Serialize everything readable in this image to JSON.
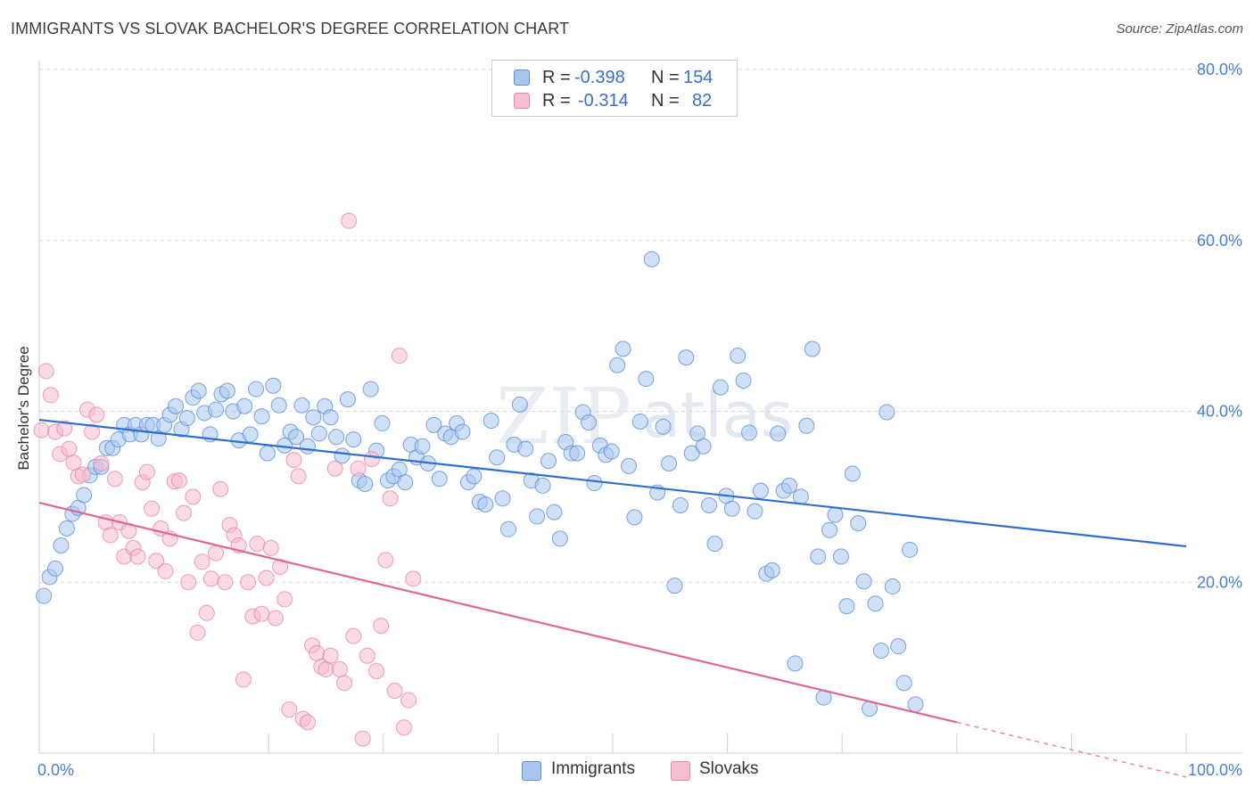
{
  "title": "IMMIGRANTS VS SLOVAK BACHELOR'S DEGREE CORRELATION CHART",
  "source": "Source: ZipAtlas.com",
  "watermark": {
    "zip": "ZIP",
    "atlas": "atlas"
  },
  "colors": {
    "blue_fill": "#a9c6ef",
    "blue_stroke": "#5b8fd8",
    "blue_line": "#2f6fd0",
    "pink_fill": "#f6bcd0",
    "pink_stroke": "#e888a8",
    "pink_line": "#e06690",
    "tick_text": "#4a7fd4",
    "grid": "#d9d9d9"
  },
  "legend": {
    "rows": [
      {
        "r_label": "R =",
        "r_value": "-0.398",
        "n_label": "N =",
        "n_value": "154"
      },
      {
        "r_label": "R =",
        "r_value": "-0.314",
        "n_label": "N =",
        "n_value": "82"
      }
    ]
  },
  "bottom_legend": {
    "series1": "Immigrants",
    "series2": "Slovaks"
  },
  "chart_data": {
    "type": "scatter",
    "title": "IMMIGRANTS VS SLOVAK BACHELOR'S DEGREE CORRELATION CHART",
    "xlabel": "",
    "ylabel": "Bachelor's Degree",
    "xlim": [
      0,
      100
    ],
    "ylim": [
      0,
      80
    ],
    "x_tick_labels": [
      "0.0%",
      "100.0%"
    ],
    "y_ticks": [
      20,
      40,
      60,
      80
    ],
    "y_tick_labels": [
      "20.0%",
      "40.0%",
      "60.0%",
      "80.0%"
    ],
    "legend_position": "top-center",
    "series": [
      {
        "name": "Immigrants",
        "R": -0.398,
        "N": 154,
        "trend": {
          "x": [
            0,
            100
          ],
          "y": [
            39.0,
            24.2
          ]
        },
        "points": [
          [
            0.4,
            18.4
          ],
          [
            0.9,
            20.6
          ],
          [
            1.4,
            21.6
          ],
          [
            1.9,
            24.3
          ],
          [
            2.4,
            26.3
          ],
          [
            2.9,
            28.0
          ],
          [
            3.4,
            28.7
          ],
          [
            3.9,
            30.2
          ],
          [
            4.4,
            32.5
          ],
          [
            4.9,
            33.5
          ],
          [
            5.4,
            33.5
          ],
          [
            5.9,
            35.7
          ],
          [
            6.4,
            35.7
          ],
          [
            6.9,
            36.7
          ],
          [
            7.4,
            38.4
          ],
          [
            7.9,
            37.3
          ],
          [
            8.4,
            38.4
          ],
          [
            8.9,
            37.3
          ],
          [
            9.4,
            38.4
          ],
          [
            9.9,
            38.4
          ],
          [
            10.4,
            36.8
          ],
          [
            10.9,
            38.4
          ],
          [
            11.4,
            39.6
          ],
          [
            11.9,
            40.6
          ],
          [
            12.4,
            37.9
          ],
          [
            12.9,
            39.2
          ],
          [
            13.4,
            41.6
          ],
          [
            13.9,
            42.4
          ],
          [
            14.4,
            39.8
          ],
          [
            14.9,
            37.3
          ],
          [
            15.4,
            40.2
          ],
          [
            15.9,
            42.0
          ],
          [
            16.4,
            42.4
          ],
          [
            16.9,
            40.0
          ],
          [
            17.4,
            36.6
          ],
          [
            17.9,
            40.6
          ],
          [
            18.4,
            37.3
          ],
          [
            18.9,
            42.6
          ],
          [
            19.4,
            39.4
          ],
          [
            19.9,
            35.1
          ],
          [
            20.4,
            43.0
          ],
          [
            20.9,
            40.7
          ],
          [
            21.4,
            36.0
          ],
          [
            21.9,
            37.6
          ],
          [
            22.4,
            37.0
          ],
          [
            22.9,
            40.7
          ],
          [
            23.4,
            35.9
          ],
          [
            23.9,
            39.3
          ],
          [
            24.4,
            37.4
          ],
          [
            24.9,
            40.6
          ],
          [
            25.4,
            39.3
          ],
          [
            25.9,
            37.0
          ],
          [
            26.4,
            34.8
          ],
          [
            26.9,
            41.4
          ],
          [
            27.4,
            36.7
          ],
          [
            27.9,
            31.9
          ],
          [
            28.4,
            31.5
          ],
          [
            28.9,
            42.6
          ],
          [
            29.4,
            35.4
          ],
          [
            29.9,
            38.6
          ],
          [
            30.4,
            31.9
          ],
          [
            30.9,
            32.4
          ],
          [
            31.4,
            33.2
          ],
          [
            31.9,
            31.7
          ],
          [
            32.4,
            36.1
          ],
          [
            32.9,
            34.6
          ],
          [
            33.4,
            35.9
          ],
          [
            33.9,
            33.9
          ],
          [
            34.4,
            38.4
          ],
          [
            34.9,
            32.1
          ],
          [
            35.4,
            37.4
          ],
          [
            35.9,
            37.0
          ],
          [
            36.4,
            38.6
          ],
          [
            36.9,
            37.6
          ],
          [
            37.4,
            31.7
          ],
          [
            37.9,
            32.4
          ],
          [
            38.4,
            29.4
          ],
          [
            38.9,
            29.1
          ],
          [
            39.4,
            38.9
          ],
          [
            39.9,
            34.6
          ],
          [
            40.4,
            29.8
          ],
          [
            40.9,
            26.2
          ],
          [
            41.4,
            36.1
          ],
          [
            41.9,
            40.8
          ],
          [
            42.4,
            35.6
          ],
          [
            42.9,
            31.9
          ],
          [
            43.4,
            27.7
          ],
          [
            43.9,
            31.3
          ],
          [
            44.4,
            34.2
          ],
          [
            44.9,
            28.2
          ],
          [
            45.4,
            25.1
          ],
          [
            45.9,
            36.4
          ],
          [
            46.4,
            35.1
          ],
          [
            46.9,
            35.1
          ],
          [
            47.4,
            39.9
          ],
          [
            47.9,
            38.7
          ],
          [
            48.4,
            31.6
          ],
          [
            48.9,
            36.0
          ],
          [
            49.4,
            34.9
          ],
          [
            49.9,
            35.3
          ],
          [
            50.4,
            45.4
          ],
          [
            50.9,
            47.3
          ],
          [
            51.4,
            33.6
          ],
          [
            51.9,
            27.6
          ],
          [
            52.4,
            38.8
          ],
          [
            52.9,
            43.8
          ],
          [
            53.4,
            57.8
          ],
          [
            53.9,
            30.5
          ],
          [
            54.4,
            38.2
          ],
          [
            54.9,
            33.9
          ],
          [
            55.4,
            19.6
          ],
          [
            55.9,
            29.0
          ],
          [
            56.4,
            46.3
          ],
          [
            56.9,
            35.1
          ],
          [
            57.4,
            37.4
          ],
          [
            57.9,
            35.9
          ],
          [
            58.4,
            29.0
          ],
          [
            58.9,
            24.5
          ],
          [
            59.4,
            42.8
          ],
          [
            59.9,
            30.1
          ],
          [
            60.4,
            28.6
          ],
          [
            60.9,
            46.5
          ],
          [
            61.4,
            43.6
          ],
          [
            61.9,
            37.5
          ],
          [
            62.4,
            28.3
          ],
          [
            62.9,
            30.7
          ],
          [
            63.4,
            21.0
          ],
          [
            63.9,
            21.4
          ],
          [
            64.4,
            37.4
          ],
          [
            64.9,
            30.7
          ],
          [
            65.4,
            31.3
          ],
          [
            65.9,
            10.5
          ],
          [
            66.4,
            30.0
          ],
          [
            66.9,
            38.3
          ],
          [
            67.4,
            47.3
          ],
          [
            67.9,
            23.0
          ],
          [
            68.4,
            6.5
          ],
          [
            68.9,
            26.1
          ],
          [
            69.4,
            27.9
          ],
          [
            69.9,
            23.0
          ],
          [
            70.4,
            17.2
          ],
          [
            70.9,
            32.7
          ],
          [
            71.4,
            26.9
          ],
          [
            71.9,
            20.1
          ],
          [
            72.4,
            5.2
          ],
          [
            72.9,
            17.5
          ],
          [
            73.4,
            12.0
          ],
          [
            73.9,
            39.9
          ],
          [
            74.4,
            19.5
          ],
          [
            74.9,
            12.5
          ],
          [
            75.4,
            8.2
          ],
          [
            75.9,
            23.8
          ],
          [
            76.4,
            5.7
          ]
        ]
      },
      {
        "name": "Slovaks",
        "R": -0.314,
        "N": 82,
        "trend": {
          "x": [
            0,
            80
          ],
          "y": [
            29.3,
            3.6
          ]
        },
        "trend_dashed": {
          "x": [
            80,
            100
          ],
          "y": [
            3.6,
            -2.8
          ]
        },
        "points": [
          [
            0.2,
            37.8
          ],
          [
            0.6,
            44.7
          ],
          [
            1.0,
            41.9
          ],
          [
            1.4,
            37.6
          ],
          [
            1.8,
            35.0
          ],
          [
            2.2,
            38.0
          ],
          [
            2.6,
            35.6
          ],
          [
            3.0,
            34.0
          ],
          [
            3.4,
            32.4
          ],
          [
            3.8,
            32.6
          ],
          [
            4.2,
            40.2
          ],
          [
            4.6,
            37.6
          ],
          [
            5.0,
            39.6
          ],
          [
            5.4,
            33.9
          ],
          [
            5.8,
            27.0
          ],
          [
            6.2,
            25.5
          ],
          [
            6.6,
            32.1
          ],
          [
            7.0,
            27.0
          ],
          [
            7.4,
            23.0
          ],
          [
            7.8,
            26.0
          ],
          [
            8.2,
            24.0
          ],
          [
            8.6,
            23.0
          ],
          [
            9.0,
            31.7
          ],
          [
            9.4,
            32.9
          ],
          [
            9.8,
            28.6
          ],
          [
            10.2,
            22.5
          ],
          [
            10.6,
            26.3
          ],
          [
            11.0,
            21.3
          ],
          [
            11.4,
            25.1
          ],
          [
            11.8,
            31.8
          ],
          [
            12.2,
            31.9
          ],
          [
            12.6,
            28.1
          ],
          [
            13.0,
            20.0
          ],
          [
            13.4,
            30.0
          ],
          [
            13.8,
            14.1
          ],
          [
            14.2,
            22.4
          ],
          [
            14.6,
            16.4
          ],
          [
            15.0,
            20.4
          ],
          [
            15.4,
            23.4
          ],
          [
            15.8,
            30.9
          ],
          [
            16.2,
            20.0
          ],
          [
            16.6,
            26.7
          ],
          [
            17.0,
            25.5
          ],
          [
            17.4,
            24.3
          ],
          [
            17.8,
            8.6
          ],
          [
            18.2,
            20.0
          ],
          [
            18.6,
            16.0
          ],
          [
            19.0,
            24.5
          ],
          [
            19.4,
            16.3
          ],
          [
            19.8,
            20.5
          ],
          [
            20.2,
            24.0
          ],
          [
            20.6,
            15.8
          ],
          [
            21.0,
            21.8
          ],
          [
            21.4,
            18.0
          ],
          [
            21.8,
            5.1
          ],
          [
            22.2,
            34.3
          ],
          [
            22.6,
            32.4
          ],
          [
            23.0,
            4.0
          ],
          [
            23.4,
            3.6
          ],
          [
            23.8,
            12.6
          ],
          [
            24.2,
            11.7
          ],
          [
            24.6,
            10.1
          ],
          [
            25.0,
            9.8
          ],
          [
            25.4,
            11.4
          ],
          [
            25.8,
            33.3
          ],
          [
            26.2,
            9.8
          ],
          [
            26.6,
            8.2
          ],
          [
            27.0,
            62.3
          ],
          [
            27.4,
            13.7
          ],
          [
            27.8,
            33.3
          ],
          [
            28.2,
            1.7
          ],
          [
            28.6,
            11.4
          ],
          [
            29.0,
            34.4
          ],
          [
            29.4,
            9.6
          ],
          [
            29.8,
            14.9
          ],
          [
            30.2,
            22.6
          ],
          [
            30.6,
            29.8
          ],
          [
            31.0,
            7.3
          ],
          [
            31.4,
            46.5
          ],
          [
            31.8,
            3.0
          ],
          [
            32.2,
            6.2
          ],
          [
            32.6,
            20.4
          ]
        ]
      }
    ]
  }
}
